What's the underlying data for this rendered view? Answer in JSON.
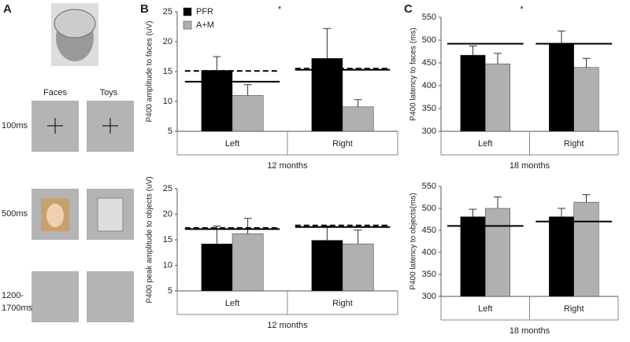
{
  "panel_a": {
    "label": "A",
    "columns": [
      "Faces",
      "Toys"
    ],
    "rows": [
      [
        "100ms"
      ],
      [
        "500ms"
      ],
      [
        "1200-",
        "1700ms"
      ]
    ]
  },
  "chart_data": [
    {
      "type": "bar",
      "panel": "B",
      "ylabel": "P400 amplitude to faces (uV)",
      "xlabel": "12 months",
      "annotation": "*",
      "legend": true,
      "categories": [
        "Left",
        "Right"
      ],
      "ylim": [
        5,
        25
      ],
      "yticks": [
        5,
        10,
        15,
        20,
        25
      ],
      "series": [
        {
          "name": "PFR",
          "color": "#000000",
          "values": [
            15.2,
            17.2
          ],
          "errors": [
            2.3,
            5.0
          ]
        },
        {
          "name": "A+M",
          "color": "#b0b0b0",
          "values": [
            11.0,
            9.1
          ],
          "errors": [
            1.8,
            1.2
          ]
        }
      ],
      "lines": [
        {
          "category": 0,
          "value": 15.1,
          "dashed": true
        },
        {
          "category": 0,
          "value": 13.3,
          "dashed": false
        },
        {
          "category": 1,
          "value": 15.5,
          "dashed": true
        },
        {
          "category": 1,
          "value": 15.3,
          "dashed": false
        }
      ]
    },
    {
      "type": "bar",
      "ylabel": "P400 peak amplitude to objects (uV)",
      "xlabel": "12 months",
      "legend": false,
      "categories": [
        "Left",
        "Right"
      ],
      "ylim": [
        5,
        25
      ],
      "yticks": [
        5,
        10,
        15,
        20,
        25
      ],
      "series": [
        {
          "name": "PFR",
          "color": "#000000",
          "values": [
            14.2,
            14.9
          ],
          "errors": [
            3.5,
            2.8
          ]
        },
        {
          "name": "A+M",
          "color": "#b0b0b0",
          "values": [
            16.2,
            14.2
          ],
          "errors": [
            3.0,
            2.7
          ]
        }
      ],
      "lines": [
        {
          "category": 0,
          "value": 17.3,
          "dashed": true
        },
        {
          "category": 0,
          "value": 17.1,
          "dashed": false
        },
        {
          "category": 1,
          "value": 17.8,
          "dashed": true
        },
        {
          "category": 1,
          "value": 17.5,
          "dashed": false
        }
      ]
    },
    {
      "type": "bar",
      "panel": "C",
      "ylabel": "P400 latency to faces (ms)",
      "xlabel": "18 months",
      "annotation": "*",
      "legend": false,
      "categories": [
        "Left",
        "Right"
      ],
      "ylim": [
        300,
        550
      ],
      "yticks": [
        300,
        350,
        400,
        450,
        500,
        550
      ],
      "series": [
        {
          "name": "PFR",
          "color": "#000000",
          "values": [
            467,
            493
          ],
          "errors": [
            20,
            27
          ]
        },
        {
          "name": "A+M",
          "color": "#b0b0b0",
          "values": [
            448,
            440
          ],
          "errors": [
            23,
            20
          ]
        }
      ],
      "lines": [
        {
          "category": 0,
          "value": 492,
          "dashed": false
        },
        {
          "category": 1,
          "value": 492,
          "dashed": false
        }
      ]
    },
    {
      "type": "bar",
      "ylabel": "P400 latency to objects(ms)",
      "xlabel": "18 months",
      "legend": false,
      "categories": [
        "Left",
        "Right"
      ],
      "ylim": [
        300,
        550
      ],
      "yticks": [
        300,
        350,
        400,
        450,
        500,
        550
      ],
      "series": [
        {
          "name": "PFR",
          "color": "#000000",
          "values": [
            481,
            481
          ],
          "errors": [
            17,
            19
          ]
        },
        {
          "name": "A+M",
          "color": "#b0b0b0",
          "values": [
            500,
            514
          ],
          "errors": [
            26,
            17
          ]
        }
      ],
      "lines": [
        {
          "category": 0,
          "value": 460,
          "dashed": false
        },
        {
          "category": 1,
          "value": 470,
          "dashed": false
        }
      ]
    }
  ]
}
